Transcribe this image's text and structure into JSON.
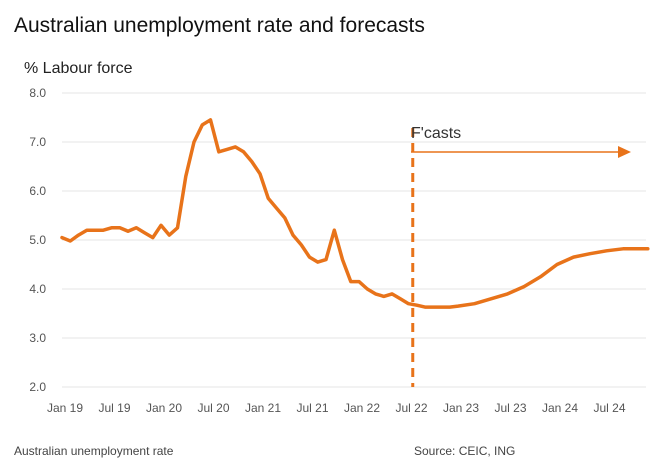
{
  "chart_data": {
    "type": "line",
    "title": "Australian unemployment rate and forecasts",
    "ylabel": "% Labour force",
    "xlabel": "",
    "ylim": [
      2.0,
      8.0
    ],
    "y_ticks": [
      "2.0",
      "3.0",
      "4.0",
      "5.0",
      "6.0",
      "7.0",
      "8.0"
    ],
    "x_ticks": [
      "Jan 19",
      "Jul 19",
      "Jan 20",
      "Jul 20",
      "Jan 21",
      "Jul 21",
      "Jan 22",
      "Jul 22",
      "Jan 23",
      "Jul 23",
      "Jan 24",
      "Jul 24"
    ],
    "x_range": [
      "2019-01",
      "2024-12"
    ],
    "grid": true,
    "line_color": "#e8731a",
    "forecast_start": "2022-08",
    "forecast_label": "F'casts",
    "series": [
      {
        "x": [
          "2019-01",
          "2019-02",
          "2019-03",
          "2019-04",
          "2019-05",
          "2019-06",
          "2019-07",
          "2019-08",
          "2019-09",
          "2019-10",
          "2019-11",
          "2019-12",
          "2020-01",
          "2020-02",
          "2020-03",
          "2020-04",
          "2020-05",
          "2020-06",
          "2020-07",
          "2020-08",
          "2020-09",
          "2020-10",
          "2020-11",
          "2020-12",
          "2021-01",
          "2021-02",
          "2021-03",
          "2021-04",
          "2021-05",
          "2021-06",
          "2021-07",
          "2021-08",
          "2021-09",
          "2021-10",
          "2021-11",
          "2021-12",
          "2022-01",
          "2022-02",
          "2022-03",
          "2022-04",
          "2022-05",
          "2022-06",
          "2022-07",
          "2022-08",
          "2022-09",
          "2022-10",
          "2022-11",
          "2022-12",
          "2023-01",
          "2023-03",
          "2023-05",
          "2023-07",
          "2023-09",
          "2023-11",
          "2024-01",
          "2024-03",
          "2024-05",
          "2024-07",
          "2024-09",
          "2024-11",
          "2024-12"
        ],
        "values": [
          5.05,
          4.98,
          5.1,
          5.2,
          5.2,
          5.2,
          5.25,
          5.25,
          5.18,
          5.25,
          5.15,
          5.05,
          5.3,
          5.1,
          5.25,
          6.3,
          7.0,
          7.35,
          7.45,
          6.8,
          6.85,
          6.9,
          6.8,
          6.6,
          6.35,
          5.85,
          5.65,
          5.45,
          5.1,
          4.9,
          4.65,
          4.55,
          4.6,
          5.2,
          4.6,
          4.15,
          4.15,
          4.0,
          3.9,
          3.85,
          3.9,
          3.8,
          3.7,
          3.67,
          3.63,
          3.63,
          3.63,
          3.63,
          3.65,
          3.7,
          3.8,
          3.9,
          4.05,
          4.25,
          4.5,
          4.65,
          4.72,
          4.78,
          4.82,
          4.82,
          4.82
        ]
      }
    ]
  },
  "footer": {
    "left": "Australian unemployment rate",
    "right": "Source: CEIC, ING"
  }
}
